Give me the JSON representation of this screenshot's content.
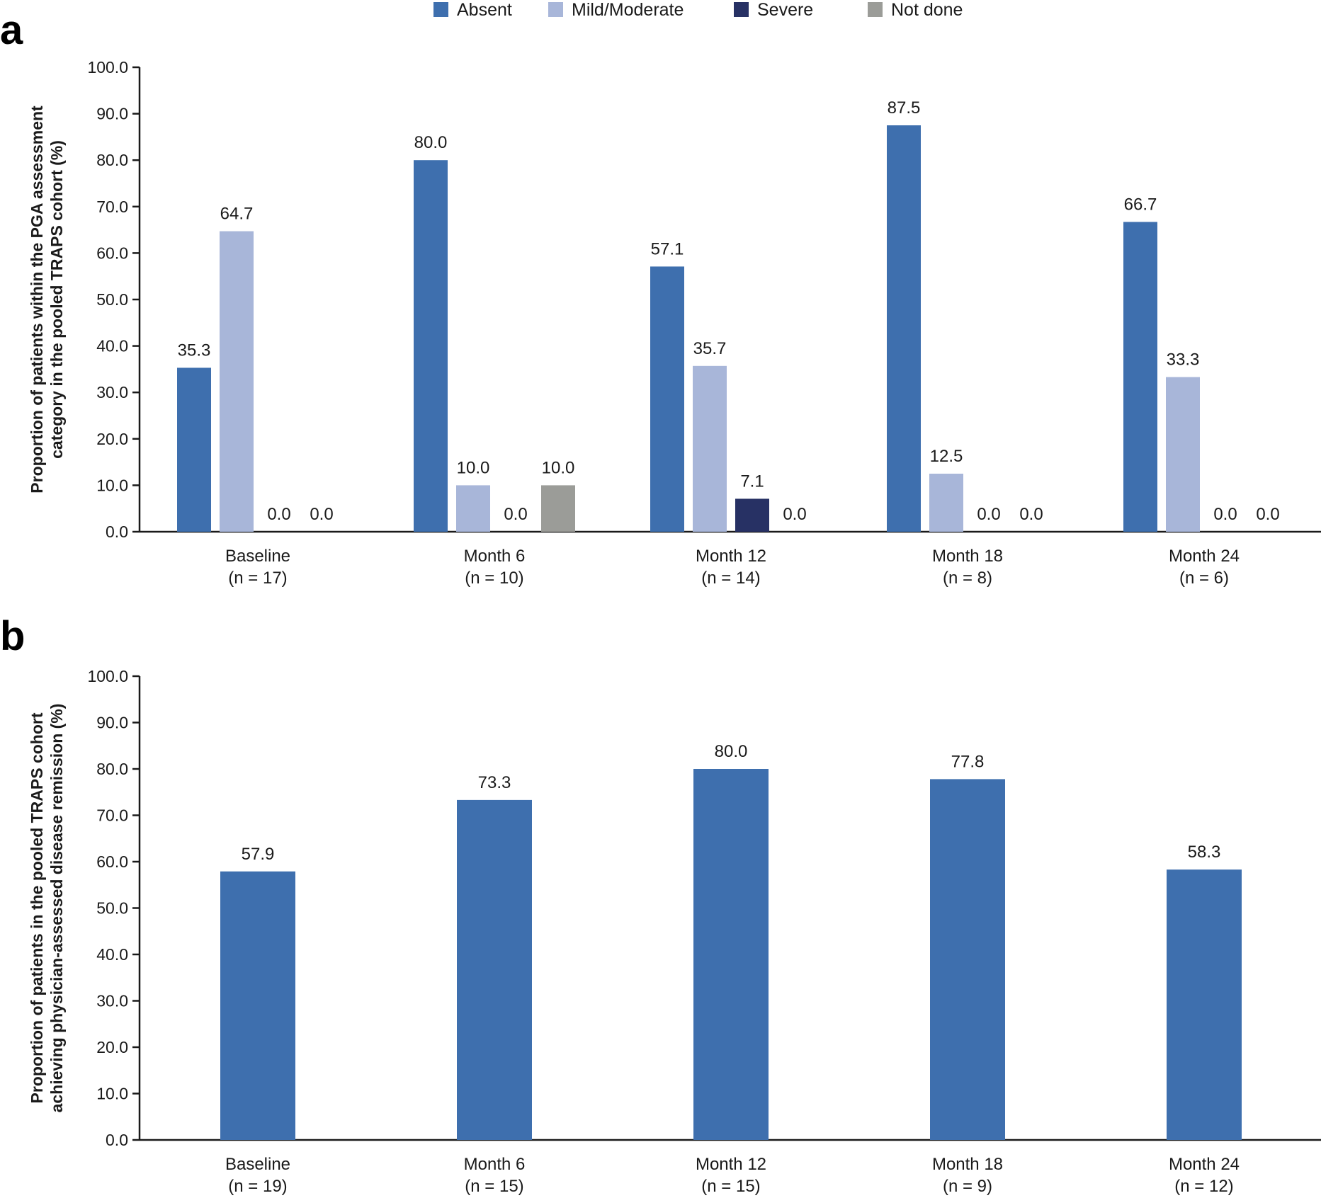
{
  "legend": [
    {
      "label": "Absent",
      "color": "#3E6FAE"
    },
    {
      "label": "Mild/Moderate",
      "color": "#A8B6D9"
    },
    {
      "label": "Severe",
      "color": "#273164"
    },
    {
      "label": "Not done",
      "color": "#9B9C98"
    }
  ],
  "chart_data": [
    {
      "panel": "a",
      "type": "bar",
      "ylabel_lines": [
        "Proportion of patients within the PGA assessment",
        "category in the pooled TRAPS cohort (%)"
      ],
      "ylim": [
        0,
        100
      ],
      "yticks": [
        "0.0",
        "10.0",
        "20.0",
        "30.0",
        "40.0",
        "50.0",
        "60.0",
        "70.0",
        "80.0",
        "90.0",
        "100.0"
      ],
      "categories": [
        [
          "Baseline",
          "(n = 17)"
        ],
        [
          "Month 6",
          "(n = 10)"
        ],
        [
          "Month 12",
          "(n = 14)"
        ],
        [
          "Month 18",
          "(n = 8)"
        ],
        [
          "Month 24",
          "(n = 6)"
        ]
      ],
      "series": [
        {
          "name": "Absent",
          "color": "#3E6FAE",
          "values": [
            35.3,
            80.0,
            57.1,
            87.5,
            66.7
          ],
          "labels": [
            "35.3",
            "80.0",
            "57.1",
            "87.5",
            "66.7"
          ]
        },
        {
          "name": "Mild/Moderate",
          "color": "#A8B6D9",
          "values": [
            64.7,
            10.0,
            35.7,
            12.5,
            33.3
          ],
          "labels": [
            "64.7",
            "10.0",
            "35.7",
            "12.5",
            "33.3"
          ]
        },
        {
          "name": "Severe",
          "color": "#273164",
          "values": [
            0.0,
            0.0,
            7.1,
            0.0,
            0.0
          ],
          "labels": [
            "0.0",
            "0.0",
            "7.1",
            "0.0",
            "0.0"
          ]
        },
        {
          "name": "Not done",
          "color": "#9B9C98",
          "values": [
            0.0,
            10.0,
            0.0,
            0.0,
            0.0
          ],
          "labels": [
            "0.0",
            "10.0",
            "0.0",
            "0.0",
            "0.0"
          ]
        }
      ],
      "grid": false
    },
    {
      "panel": "b",
      "type": "bar",
      "ylabel_lines": [
        "Proportion of patients in the pooled TRAPS cohort",
        "achieving physician-assessed disease remission (%)"
      ],
      "ylim": [
        0,
        100
      ],
      "yticks": [
        "0.0",
        "10.0",
        "20.0",
        "30.0",
        "40.0",
        "50.0",
        "60.0",
        "70.0",
        "80.0",
        "90.0",
        "100.0"
      ],
      "categories": [
        [
          "Baseline",
          "(n = 19)"
        ],
        [
          "Month 6",
          "(n = 15)"
        ],
        [
          "Month 12",
          "(n = 15)"
        ],
        [
          "Month 18",
          "(n = 9)"
        ],
        [
          "Month 24",
          "(n = 12)"
        ]
      ],
      "series": [
        {
          "color": "#3E6FAE",
          "values": [
            57.9,
            73.3,
            80.0,
            77.8,
            58.3
          ],
          "labels": [
            "57.9",
            "73.3",
            "80.0",
            "77.8",
            "58.3"
          ]
        }
      ],
      "grid": false
    }
  ]
}
